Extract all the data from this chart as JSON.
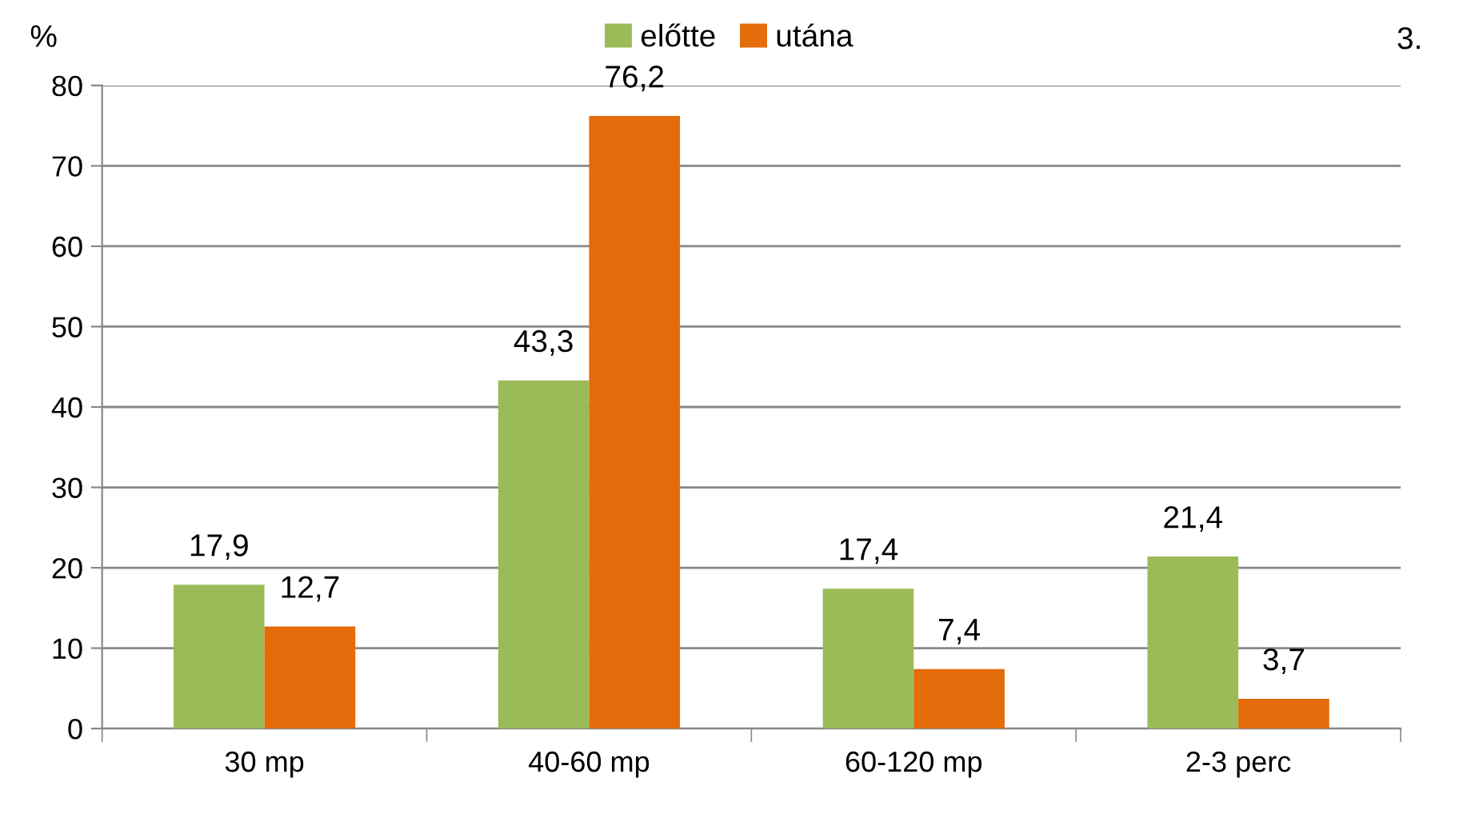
{
  "chart_data": {
    "type": "bar",
    "ylabel": "%",
    "annotations": [
      "3."
    ],
    "categories": [
      "30 mp",
      "40-60 mp",
      "60-120 mp",
      "2-3 perc"
    ],
    "series": [
      {
        "name": "előtte",
        "color": "#9bbb59",
        "values": [
          17.9,
          43.3,
          17.4,
          21.4
        ],
        "value_labels": [
          "17,9",
          "43,3",
          "17,4",
          "21,4"
        ]
      },
      {
        "name": "utána",
        "color": "#e46c0a",
        "values": [
          12.7,
          76.2,
          7.4,
          3.7
        ],
        "value_labels": [
          "12,7",
          "76,2",
          "7,4",
          "3,7"
        ]
      }
    ],
    "ylim": [
      0,
      80
    ],
    "yticks": [
      0,
      10,
      20,
      30,
      40,
      50,
      60,
      70,
      80
    ],
    "grid": "y",
    "legend": "top"
  }
}
